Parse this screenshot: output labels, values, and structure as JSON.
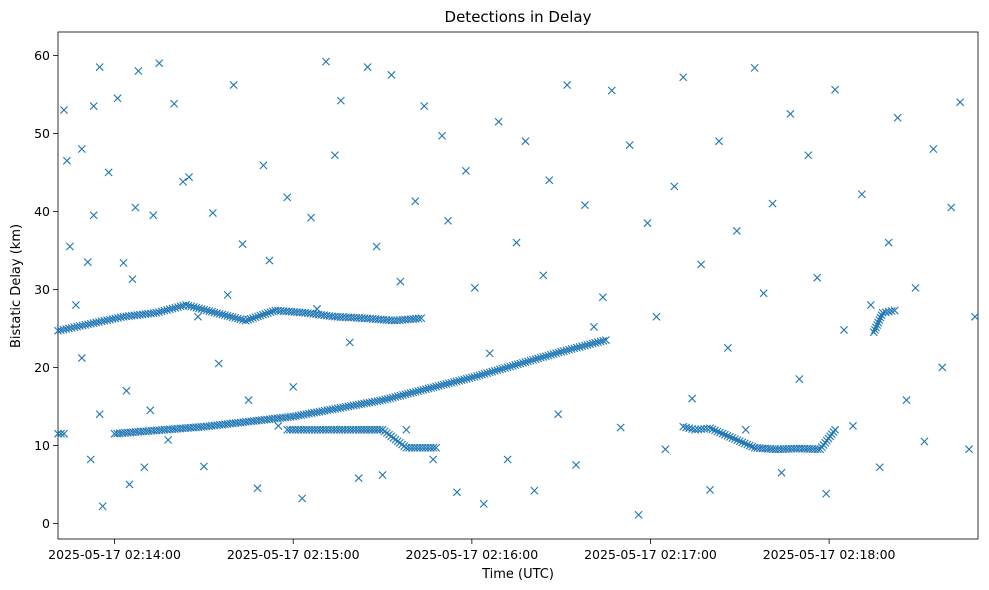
{
  "chart_data": {
    "type": "scatter",
    "title": "Detections in Delay",
    "xlabel": "Time (UTC)",
    "ylabel": "Bistatic Delay (km)",
    "x_axis_type": "time",
    "xlim": [
      "2025-05-17 02:13:41",
      "2025-05-17 02:18:50"
    ],
    "ylim": [
      -2,
      63
    ],
    "x_ticks": [
      "2025-05-17 02:14:00",
      "2025-05-17 02:15:00",
      "2025-05-17 02:16:00",
      "2025-05-17 02:17:00",
      "2025-05-17 02:18:00"
    ],
    "y_ticks": [
      0,
      10,
      20,
      30,
      40,
      50,
      60
    ],
    "grid": false,
    "legend": "none",
    "marker": "x",
    "color": "#1f77b4",
    "series": [
      {
        "track_curve": {
          "x": [
            "2025-05-17 02:14:00",
            "2025-05-17 02:14:30",
            "2025-05-17 02:15:00",
            "2025-05-17 02:15:30",
            "2025-05-17 02:16:00",
            "2025-05-17 02:16:30",
            "2025-05-17 02:16:45"
          ],
          "y": [
            11.5,
            12.4,
            13.7,
            15.8,
            18.7,
            22.0,
            23.5
          ]
        },
        "track_upper": {
          "x": [
            "2025-05-17 02:13:41",
            "2025-05-17 02:13:52",
            "2025-05-17 02:14:03",
            "2025-05-17 02:14:14",
            "2025-05-17 02:14:24",
            "2025-05-17 02:14:44",
            "2025-05-17 02:14:54",
            "2025-05-17 02:15:04",
            "2025-05-17 02:15:14",
            "2025-05-17 02:15:24",
            "2025-05-17 02:15:34",
            "2025-05-17 02:15:43"
          ],
          "y": [
            24.7,
            25.6,
            26.5,
            27.0,
            28.0,
            26.0,
            27.3,
            27.0,
            26.5,
            26.3,
            26.0,
            26.3
          ]
        },
        "track_low_left": {
          "x": [
            "2025-05-17 02:13:41",
            "2025-05-17 02:13:43"
          ],
          "y": [
            11.5,
            11.5
          ]
        },
        "track_low_mid": {
          "x": [
            "2025-05-17 02:14:58",
            "2025-05-17 02:15:10",
            "2025-05-17 02:15:22",
            "2025-05-17 02:15:30",
            "2025-05-17 02:15:38",
            "2025-05-17 02:15:48"
          ],
          "y": [
            12.0,
            12.0,
            12.0,
            12.0,
            9.7,
            9.7
          ]
        },
        "track_low_right": {
          "x": [
            "2025-05-17 02:17:11",
            "2025-05-17 02:17:15",
            "2025-05-17 02:17:20",
            "2025-05-17 02:17:35",
            "2025-05-17 02:17:42",
            "2025-05-17 02:17:50",
            "2025-05-17 02:17:57",
            "2025-05-17 02:18:02"
          ],
          "y": [
            12.4,
            12.0,
            12.2,
            9.7,
            9.5,
            9.6,
            9.5,
            12.0
          ]
        },
        "track_right_cluster": {
          "x": [
            "2025-05-17 02:18:15",
            "2025-05-17 02:18:18",
            "2025-05-17 02:18:22"
          ],
          "y": [
            24.5,
            27.0,
            27.3
          ]
        },
        "noise": {
          "x": [
            "2025-05-17 02:13:43",
            "2025-05-17 02:13:44",
            "2025-05-17 02:13:45",
            "2025-05-17 02:13:47",
            "2025-05-17 02:13:49",
            "2025-05-17 02:13:49",
            "2025-05-17 02:13:51",
            "2025-05-17 02:13:52",
            "2025-05-17 02:13:53",
            "2025-05-17 02:13:53",
            "2025-05-17 02:13:55",
            "2025-05-17 02:13:55",
            "2025-05-17 02:13:56",
            "2025-05-17 02:13:58",
            "2025-05-17 02:14:01",
            "2025-05-17 02:14:03",
            "2025-05-17 02:14:04",
            "2025-05-17 02:14:05",
            "2025-05-17 02:14:06",
            "2025-05-17 02:14:07",
            "2025-05-17 02:14:08",
            "2025-05-17 02:14:10",
            "2025-05-17 02:14:12",
            "2025-05-17 02:14:13",
            "2025-05-17 02:14:15",
            "2025-05-17 02:14:18",
            "2025-05-17 02:14:20",
            "2025-05-17 02:14:23",
            "2025-05-17 02:14:25",
            "2025-05-17 02:14:28",
            "2025-05-17 02:14:30",
            "2025-05-17 02:14:33",
            "2025-05-17 02:14:35",
            "2025-05-17 02:14:38",
            "2025-05-17 02:14:40",
            "2025-05-17 02:14:43",
            "2025-05-17 02:14:45",
            "2025-05-17 02:14:48",
            "2025-05-17 02:14:50",
            "2025-05-17 02:14:52",
            "2025-05-17 02:14:55",
            "2025-05-17 02:14:58",
            "2025-05-17 02:15:00",
            "2025-05-17 02:15:03",
            "2025-05-17 02:15:06",
            "2025-05-17 02:15:08",
            "2025-05-17 02:15:11",
            "2025-05-17 02:15:14",
            "2025-05-17 02:15:16",
            "2025-05-17 02:15:19",
            "2025-05-17 02:15:22",
            "2025-05-17 02:15:25",
            "2025-05-17 02:15:28",
            "2025-05-17 02:15:30",
            "2025-05-17 02:15:33",
            "2025-05-17 02:15:36",
            "2025-05-17 02:15:38",
            "2025-05-17 02:15:41",
            "2025-05-17 02:15:44",
            "2025-05-17 02:15:47",
            "2025-05-17 02:15:50",
            "2025-05-17 02:15:52",
            "2025-05-17 02:15:55",
            "2025-05-17 02:15:58",
            "2025-05-17 02:16:01",
            "2025-05-17 02:16:04",
            "2025-05-17 02:16:06",
            "2025-05-17 02:16:09",
            "2025-05-17 02:16:12",
            "2025-05-17 02:16:15",
            "2025-05-17 02:16:18",
            "2025-05-17 02:16:21",
            "2025-05-17 02:16:24",
            "2025-05-17 02:16:26",
            "2025-05-17 02:16:29",
            "2025-05-17 02:16:32",
            "2025-05-17 02:16:35",
            "2025-05-17 02:16:38",
            "2025-05-17 02:16:41",
            "2025-05-17 02:16:44",
            "2025-05-17 02:16:47",
            "2025-05-17 02:16:50",
            "2025-05-17 02:16:53",
            "2025-05-17 02:16:56",
            "2025-05-17 02:16:59",
            "2025-05-17 02:17:02",
            "2025-05-17 02:17:05",
            "2025-05-17 02:17:08",
            "2025-05-17 02:17:11",
            "2025-05-17 02:17:14",
            "2025-05-17 02:17:17",
            "2025-05-17 02:17:20",
            "2025-05-17 02:17:23",
            "2025-05-17 02:17:26",
            "2025-05-17 02:17:29",
            "2025-05-17 02:17:32",
            "2025-05-17 02:17:35",
            "2025-05-17 02:17:38",
            "2025-05-17 02:17:41",
            "2025-05-17 02:17:44",
            "2025-05-17 02:17:47",
            "2025-05-17 02:17:50",
            "2025-05-17 02:17:53",
            "2025-05-17 02:17:56",
            "2025-05-17 02:17:59",
            "2025-05-17 02:18:02",
            "2025-05-17 02:18:05",
            "2025-05-17 02:18:08",
            "2025-05-17 02:18:11",
            "2025-05-17 02:18:14",
            "2025-05-17 02:18:17",
            "2025-05-17 02:18:20",
            "2025-05-17 02:18:23",
            "2025-05-17 02:18:26",
            "2025-05-17 02:18:29",
            "2025-05-17 02:18:32",
            "2025-05-17 02:18:35",
            "2025-05-17 02:18:38",
            "2025-05-17 02:18:41",
            "2025-05-17 02:18:44",
            "2025-05-17 02:18:47",
            "2025-05-17 02:18:49"
          ],
          "y": [
            53.0,
            46.5,
            35.5,
            28.0,
            48.0,
            21.2,
            33.5,
            8.2,
            39.5,
            53.5,
            58.5,
            14.0,
            2.2,
            45.0,
            54.5,
            33.4,
            17.0,
            5.0,
            31.3,
            40.5,
            58.0,
            7.2,
            14.5,
            39.5,
            59.0,
            10.7,
            53.8,
            43.8,
            44.4,
            26.5,
            7.3,
            39.8,
            20.5,
            29.3,
            56.2,
            35.8,
            15.8,
            4.5,
            45.9,
            33.7,
            12.5,
            41.8,
            17.5,
            3.2,
            39.2,
            27.5,
            59.2,
            47.2,
            54.2,
            23.2,
            5.8,
            58.5,
            35.5,
            6.2,
            57.5,
            31.0,
            12.0,
            41.3,
            53.5,
            8.2,
            49.7,
            38.8,
            4.0,
            45.2,
            30.2,
            2.5,
            21.8,
            51.5,
            8.2,
            36.0,
            49.0,
            4.2,
            31.8,
            44.0,
            14.0,
            56.2,
            7.5,
            40.8,
            25.2,
            29.0,
            55.5,
            12.3,
            48.5,
            1.1,
            38.5,
            26.5,
            9.5,
            43.2,
            57.2,
            16.0,
            33.2,
            4.3,
            49.0,
            22.5,
            37.5,
            12.0,
            58.4,
            29.5,
            41.0,
            6.5,
            52.5,
            18.5,
            47.2,
            31.5,
            3.8,
            55.6,
            24.8,
            12.5,
            42.2,
            28.0,
            7.2,
            36.0,
            52.0,
            15.8,
            30.2,
            10.5,
            48.0,
            20.0,
            40.5,
            54.0,
            9.5,
            26.5
          ]
        }
      }
    ]
  }
}
